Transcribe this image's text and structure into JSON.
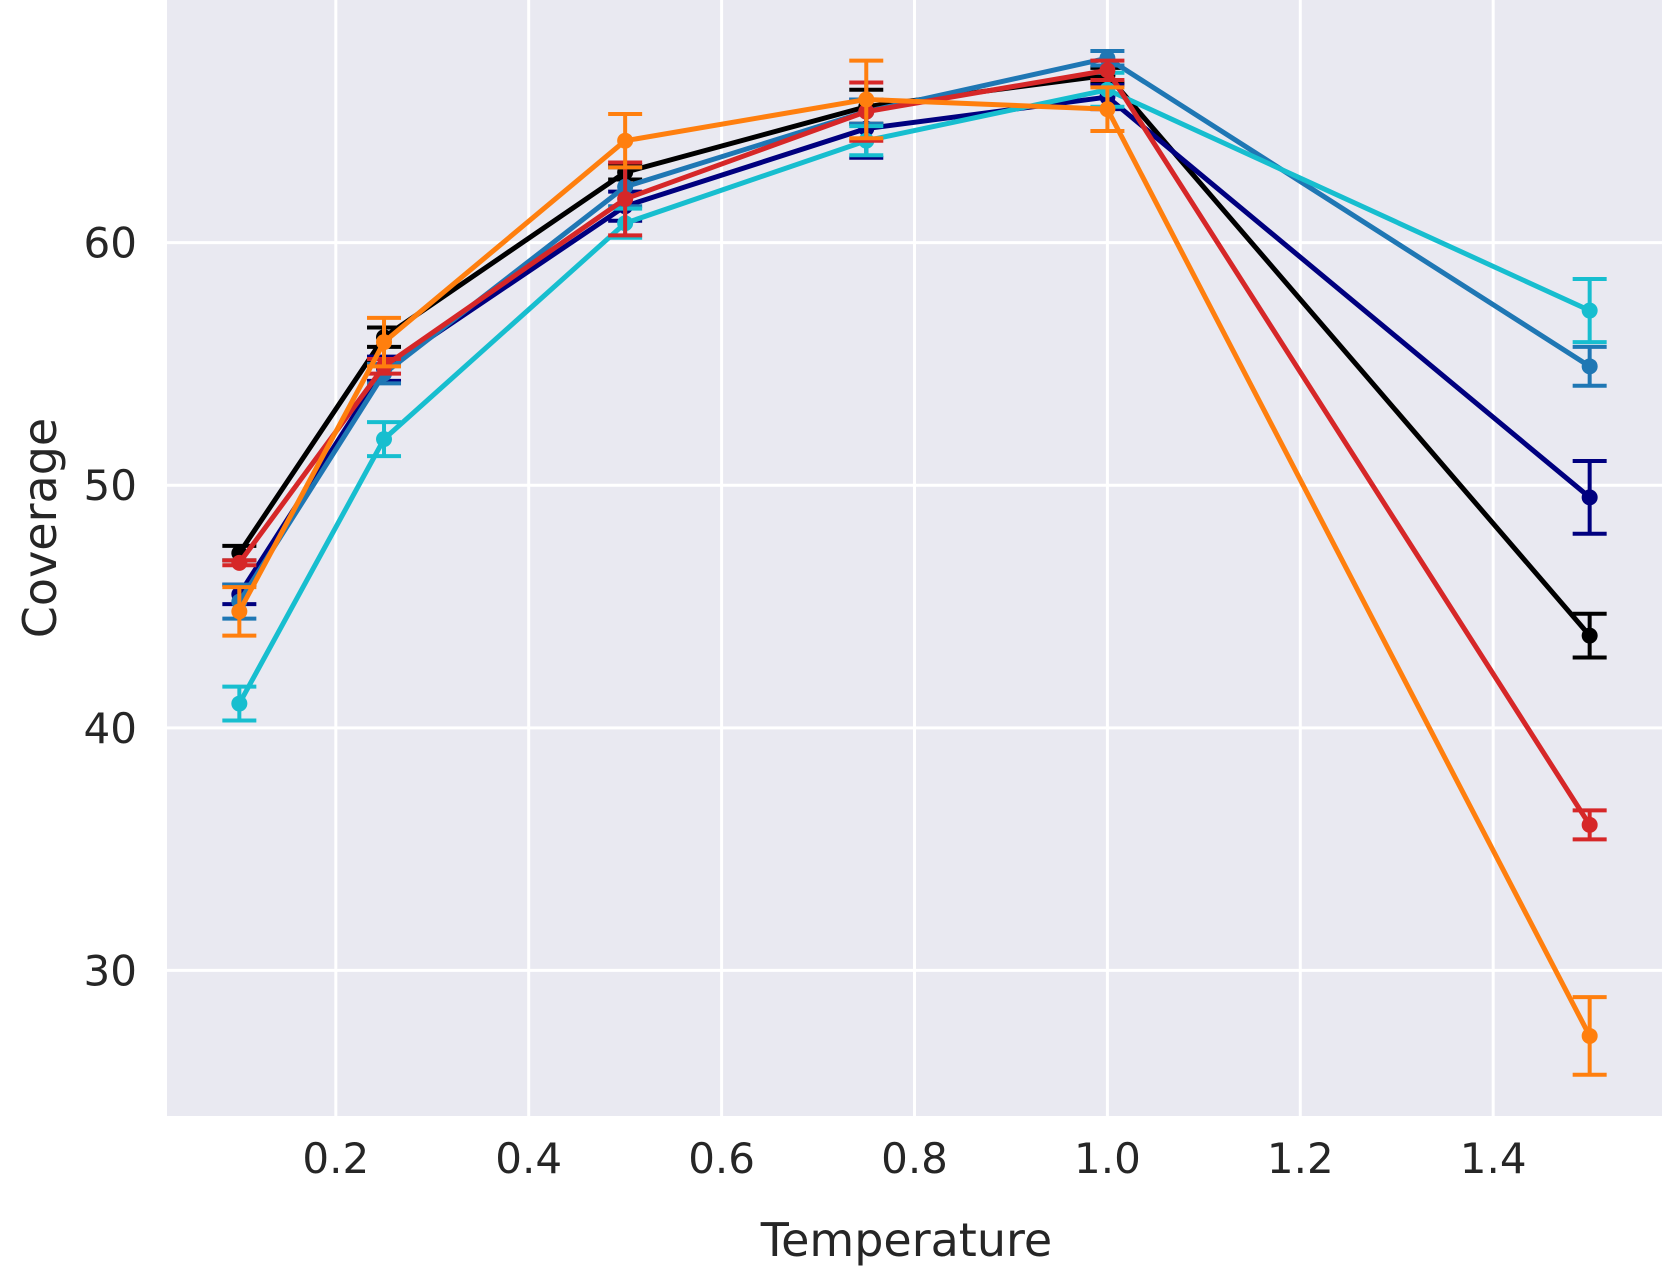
{
  "chart_data": {
    "type": "line",
    "title": "",
    "xlabel": "Temperature",
    "ylabel": "Coverage",
    "xlim": [
      0.025,
      1.575
    ],
    "ylim": [
      24,
      70
    ],
    "xticks": [
      0.2,
      0.4,
      0.6,
      0.8,
      1.0,
      1.2,
      1.4
    ],
    "xtick_labels": [
      "0.2",
      "0.4",
      "0.6",
      "0.8",
      "1.0",
      "1.2",
      "1.4"
    ],
    "yticks": [
      30,
      40,
      50,
      60
    ],
    "ytick_labels": [
      "30",
      "40",
      "50",
      "60"
    ],
    "grid": true,
    "background": "#e9e9f1",
    "x": [
      0.1,
      0.25,
      0.5,
      0.75,
      1.0,
      1.5
    ],
    "series": [
      {
        "name": "black",
        "color": "#000000",
        "values": [
          47.2,
          56.1,
          62.9,
          65.6,
          66.9,
          43.8
        ],
        "errors": [
          0.3,
          0.4,
          0.3,
          0.7,
          0.3,
          0.9
        ]
      },
      {
        "name": "navy",
        "color": "#00007f",
        "values": [
          45.5,
          54.8,
          61.5,
          64.7,
          66.0,
          49.5
        ],
        "errors": [
          0.4,
          0.5,
          0.6,
          1.2,
          0.5,
          1.5
        ]
      },
      {
        "name": "steelblue",
        "color": "#1f77b4",
        "values": [
          45.2,
          54.6,
          62.3,
          65.4,
          67.6,
          54.9
        ],
        "errors": [
          0.7,
          0.4,
          0.8,
          0.5,
          0.3,
          0.8
        ]
      },
      {
        "name": "cyan",
        "color": "#17becf",
        "values": [
          41.0,
          51.9,
          60.8,
          64.2,
          66.3,
          57.2
        ],
        "errors": [
          0.7,
          0.7,
          0.6,
          0.6,
          0.7,
          1.3
        ]
      },
      {
        "name": "red",
        "color": "#d62728",
        "values": [
          46.8,
          54.9,
          61.8,
          65.4,
          67.1,
          36.0
        ],
        "errors": [
          0.1,
          0.3,
          1.5,
          1.2,
          0.4,
          0.6
        ]
      },
      {
        "name": "orange",
        "color": "#ff7f0e",
        "values": [
          44.8,
          55.9,
          64.2,
          65.9,
          65.5,
          27.3
        ],
        "errors": [
          1.0,
          1.0,
          1.1,
          1.6,
          0.9,
          1.6
        ]
      }
    ]
  }
}
